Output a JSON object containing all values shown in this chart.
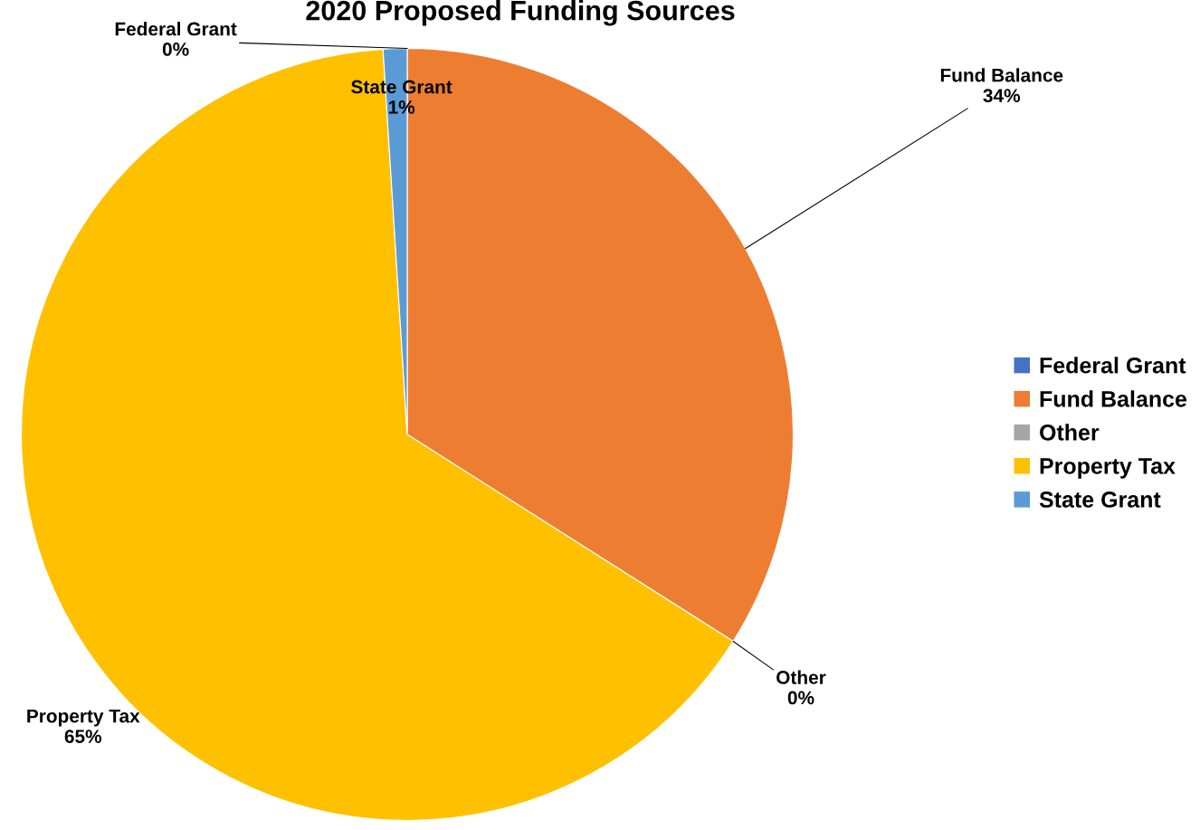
{
  "chart_data": {
    "type": "pie",
    "title": "2020 Proposed Funding Sources",
    "categories": [
      "Federal Grant",
      "Fund Balance",
      "Other",
      "Property Tax",
      "State Grant"
    ],
    "values": [
      0,
      34,
      0,
      65,
      1
    ],
    "value_labels": [
      "0%",
      "34%",
      "0%",
      "65%",
      "1%"
    ],
    "colors": [
      "#4472c4",
      "#ed7d31",
      "#a5a5a5",
      "#ffc000",
      "#5b9bd5"
    ],
    "legend": "right"
  }
}
